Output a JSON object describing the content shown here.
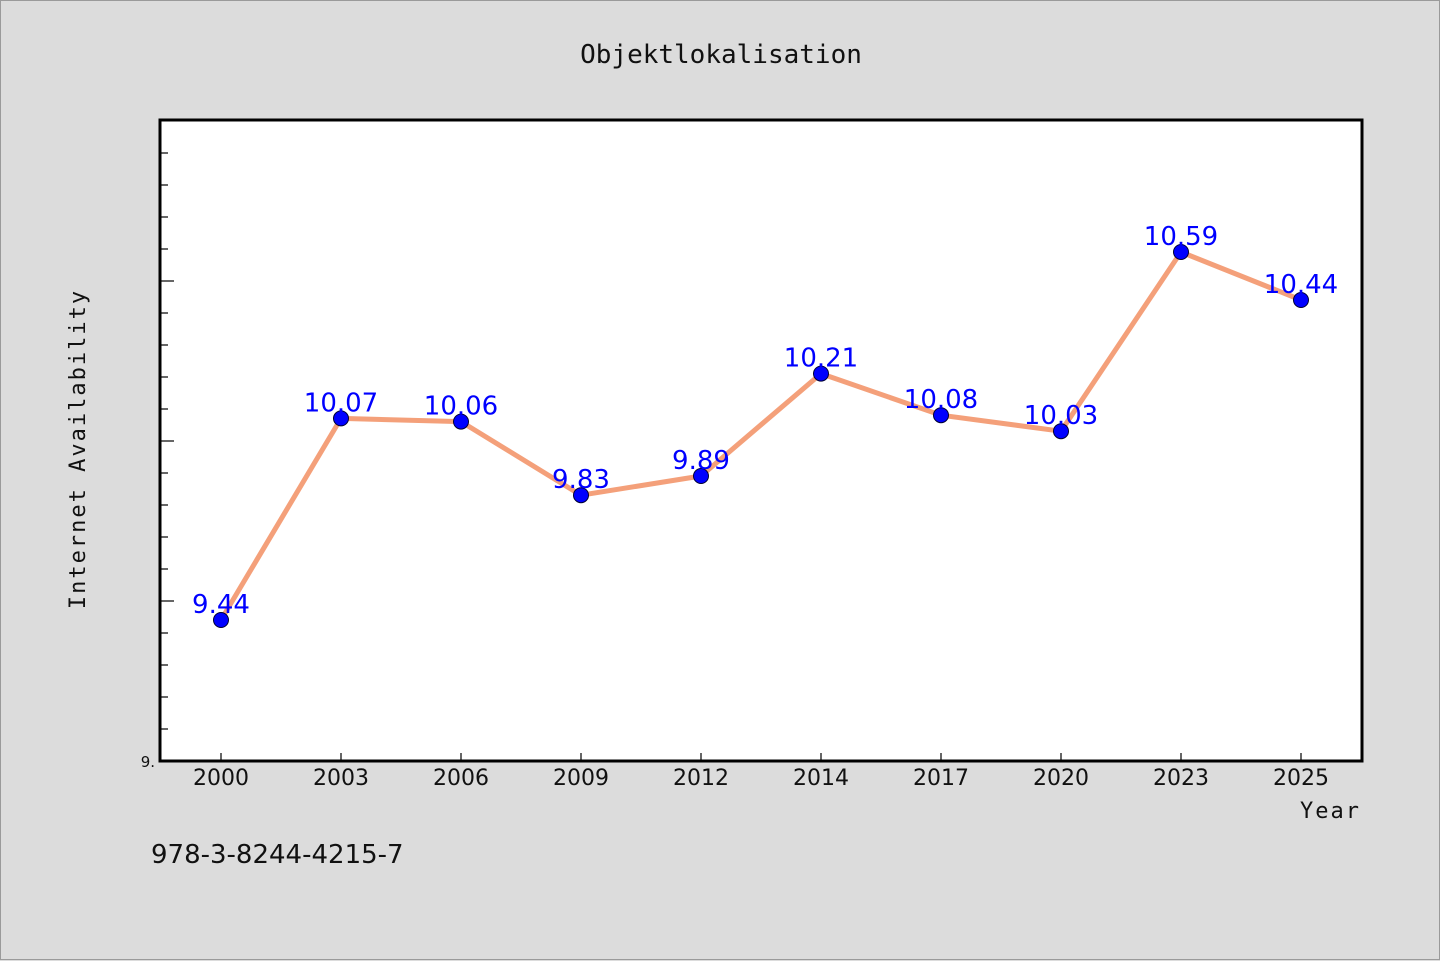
{
  "footer_text": "978-3-8244-4215-7",
  "chart_data": {
    "type": "line",
    "title": "Objektlokalisation",
    "xlabel": "Year",
    "ylabel": "Internet Availability",
    "x": [
      "2000",
      "2003",
      "2006",
      "2009",
      "2012",
      "2014",
      "2017",
      "2020",
      "2023",
      "2025"
    ],
    "series": [
      {
        "values": [
          9.44,
          10.07,
          10.06,
          9.83,
          9.89,
          10.21,
          10.08,
          10.03,
          10.59,
          10.44
        ]
      }
    ],
    "data_labels": [
      "9.44",
      "10.07",
      "10.06",
      "9.83",
      "9.89",
      "10.21",
      "10.08",
      "10.03",
      "10.59",
      "10.44"
    ],
    "y_min_label": "9.",
    "ylim": [
      9.0,
      11.0
    ],
    "grid": false,
    "legend": "none",
    "colors": {
      "line": "#f4a07a",
      "marker": "#0000ff",
      "data_label": "#0000ff",
      "plot_background": "#ffffff",
      "page_background": "#dcdcdc"
    }
  }
}
